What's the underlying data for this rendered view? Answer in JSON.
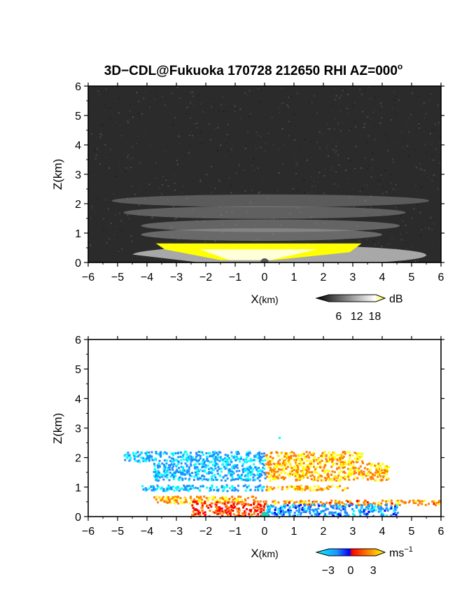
{
  "title": "3D−CDL@Fukuoka 170728 212650 RHI AZ=000",
  "title_suffix": "o",
  "chart_data": [
    {
      "type": "heatmap",
      "name": "reflectivity",
      "xlabel_main": "X",
      "xlabel_unit": "(km)",
      "ylabel": "Z(km)",
      "xlim": [
        -6,
        6
      ],
      "ylim": [
        0,
        6
      ],
      "xticks": [
        "−6",
        "−5",
        "−4",
        "−3",
        "−2",
        "−1",
        "0",
        "1",
        "2",
        "3",
        "4",
        "5",
        "6"
      ],
      "yticks": [
        "0",
        "1",
        "2",
        "3",
        "4",
        "5",
        "6"
      ],
      "background_color": "#2b2b2b",
      "grid": false,
      "layers": [
        {
          "z": 2.1,
          "x0": -5.2,
          "x1": 5.6,
          "brightness": 0.45
        },
        {
          "z": 1.7,
          "x0": -4.8,
          "x1": 4.8,
          "brightness": 0.5
        },
        {
          "z": 1.25,
          "x0": -4.2,
          "x1": 4.6,
          "brightness": 0.55
        },
        {
          "z": 0.95,
          "x0": -4.2,
          "x1": 4.0,
          "brightness": 0.6
        }
      ],
      "strong_echo": {
        "x0": -3.7,
        "x1": 3.3,
        "z_top": 0.65,
        "color": "#ffff00"
      },
      "colorbar": {
        "unit": "dB",
        "ticks": [
          "6",
          "12",
          "18"
        ],
        "min": 0,
        "max": 20,
        "tick_values": [
          6,
          12,
          18
        ],
        "colors": [
          "#000000",
          "#ffffff",
          "#ffff00"
        ]
      }
    },
    {
      "type": "heatmap",
      "name": "doppler_velocity",
      "xlabel_main": "X",
      "xlabel_unit": "(km)",
      "ylabel": "Z(km)",
      "xlim": [
        -6,
        6
      ],
      "ylim": [
        0,
        6
      ],
      "xticks": [
        "−6",
        "−5",
        "−4",
        "−3",
        "−2",
        "−1",
        "0",
        "1",
        "2",
        "3",
        "4",
        "5",
        "6"
      ],
      "yticks": [
        "0",
        "1",
        "2",
        "3",
        "4",
        "5",
        "6"
      ],
      "background_color": "#ffffff",
      "grid": false,
      "layers": [
        {
          "z": 2.05,
          "x0": -4.8,
          "x1": 0.0,
          "v": -3,
          "z_half": 0.18
        },
        {
          "z": 2.05,
          "x0": 0.0,
          "x1": 3.3,
          "v": 3,
          "z_half": 0.18
        },
        {
          "z": 1.55,
          "x0": -3.8,
          "x1": 0.0,
          "v": -3,
          "z_half": 0.3
        },
        {
          "z": 1.55,
          "x0": 0.0,
          "x1": 4.2,
          "v": 3,
          "z_half": 0.3
        },
        {
          "z": 1.0,
          "x0": -4.2,
          "x1": 0.0,
          "v": -3,
          "z_half": 0.1
        },
        {
          "z": 1.0,
          "x0": 0.0,
          "x1": 2.8,
          "v": 3,
          "z_half": 0.08
        },
        {
          "z": 0.6,
          "x0": -3.8,
          "x1": -0.3,
          "v": 3,
          "z_half": 0.12
        },
        {
          "z": 0.5,
          "x0": 0.0,
          "x1": 6.0,
          "v": 2.5,
          "z_half": 0.08
        },
        {
          "z": 0.3,
          "x0": -2.5,
          "x1": 0.0,
          "v": 1.5,
          "z_half": 0.25
        },
        {
          "z": 0.25,
          "x0": 0.0,
          "x1": 4.5,
          "v": -2.5,
          "z_half": 0.2
        }
      ],
      "colorbar": {
        "unit": "ms",
        "unit_exp": "−1",
        "ticks": [
          "−3",
          "0",
          "3"
        ],
        "min": -4,
        "max": 4,
        "tick_values": [
          -3,
          0,
          3
        ],
        "colors": [
          "#00ffff",
          "#1e90ff",
          "#0000ff",
          "#ff0000",
          "#ff8000",
          "#ffff00"
        ]
      }
    }
  ]
}
